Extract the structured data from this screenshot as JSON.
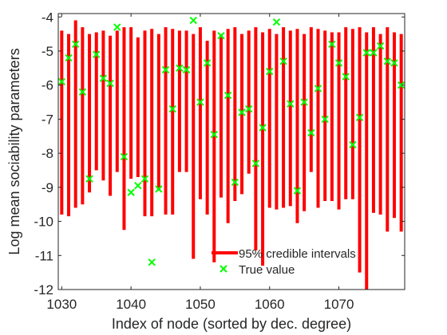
{
  "chart_data": {
    "type": "errorbar-scatter",
    "xlabel": "Index of node (sorted by dec. degree)",
    "ylabel": "Log mean sociability parameters",
    "xlim": [
      1029.5,
      1079.5
    ],
    "ylim": [
      -12,
      -3.9
    ],
    "xticks": [
      1030,
      1040,
      1050,
      1060,
      1070
    ],
    "yticks": [
      -4,
      -5,
      -6,
      -7,
      -8,
      -9,
      -10,
      -11,
      -12
    ],
    "legend": {
      "position": "bottom-right",
      "entries": [
        "95% credible intervals",
        "True value"
      ]
    },
    "colors": {
      "interval": "#ff0000",
      "true_value": "#00ff00",
      "axis": "#262626"
    },
    "series": [
      {
        "name": "95% credible intervals",
        "points": [
          {
            "x": 1030,
            "low": -9.8,
            "high": -4.4
          },
          {
            "x": 1031,
            "low": -9.85,
            "high": -4.5
          },
          {
            "x": 1032,
            "low": -9.6,
            "high": -4.1
          },
          {
            "x": 1033,
            "low": -9.5,
            "high": -4.3
          },
          {
            "x": 1034,
            "low": -9.15,
            "high": -4.5
          },
          {
            "x": 1035,
            "low": -8.5,
            "high": -4.45
          },
          {
            "x": 1036,
            "low": -8.8,
            "high": -4.4
          },
          {
            "x": 1037,
            "low": -9.25,
            "high": -4.55
          },
          {
            "x": 1038,
            "low": -8.55,
            "high": -4.4
          },
          {
            "x": 1039,
            "low": -10.25,
            "high": -4.3
          },
          {
            "x": 1040,
            "low": -8.75,
            "high": -4.3
          },
          {
            "x": 1041,
            "low": -8.7,
            "high": -4.6
          },
          {
            "x": 1042,
            "low": -9.85,
            "high": -4.4
          },
          {
            "x": 1043,
            "low": -9.85,
            "high": -4.35
          },
          {
            "x": 1044,
            "low": -9.1,
            "high": -4.5
          },
          {
            "x": 1045,
            "low": -9.8,
            "high": -4.3
          },
          {
            "x": 1046,
            "low": -9.8,
            "high": -4.35
          },
          {
            "x": 1047,
            "low": -8.55,
            "high": -4.4
          },
          {
            "x": 1048,
            "low": -8.55,
            "high": -4.4
          },
          {
            "x": 1049,
            "low": -11.1,
            "high": -4.5
          },
          {
            "x": 1050,
            "low": -9.35,
            "high": -4.3
          },
          {
            "x": 1051,
            "low": -9.8,
            "high": -4.7
          },
          {
            "x": 1052,
            "low": -11.2,
            "high": -4.4
          },
          {
            "x": 1053,
            "low": -9.3,
            "high": -4.5
          },
          {
            "x": 1054,
            "low": -10.05,
            "high": -4.35
          },
          {
            "x": 1055,
            "low": -9.4,
            "high": -4.3
          },
          {
            "x": 1056,
            "low": -9.2,
            "high": -4.5
          },
          {
            "x": 1057,
            "low": -8.6,
            "high": -4.4
          },
          {
            "x": 1058,
            "low": -10.85,
            "high": -4.3
          },
          {
            "x": 1059,
            "low": -11.3,
            "high": -4.45
          },
          {
            "x": 1060,
            "low": -9.6,
            "high": -4.35
          },
          {
            "x": 1061,
            "low": -9.65,
            "high": -4.5
          },
          {
            "x": 1062,
            "low": -9.6,
            "high": -4.3
          },
          {
            "x": 1063,
            "low": -9.55,
            "high": -4.4
          },
          {
            "x": 1064,
            "low": -10.05,
            "high": -4.35
          },
          {
            "x": 1065,
            "low": -9.7,
            "high": -4.5
          },
          {
            "x": 1066,
            "low": -8.55,
            "high": -4.3
          },
          {
            "x": 1067,
            "low": -9.6,
            "high": -4.35
          },
          {
            "x": 1068,
            "low": -9.4,
            "high": -4.4
          },
          {
            "x": 1069,
            "low": -9.4,
            "high": -4.45
          },
          {
            "x": 1070,
            "low": -9.65,
            "high": -4.45
          },
          {
            "x": 1071,
            "low": -9.35,
            "high": -4.3
          },
          {
            "x": 1072,
            "low": -9.35,
            "high": -4.35
          },
          {
            "x": 1073,
            "low": -11.5,
            "high": -4.3
          },
          {
            "x": 1074,
            "low": -12.0,
            "high": -4.45
          },
          {
            "x": 1075,
            "low": -9.75,
            "high": -4.3
          },
          {
            "x": 1076,
            "low": -9.8,
            "high": -4.5
          },
          {
            "x": 1077,
            "low": -10.3,
            "high": -4.3
          },
          {
            "x": 1078,
            "low": -9.9,
            "high": -4.45
          },
          {
            "x": 1079,
            "low": -10.3,
            "high": -4.5
          }
        ]
      },
      {
        "name": "True value",
        "points": [
          {
            "x": 1030,
            "y": -5.9
          },
          {
            "x": 1031,
            "y": -5.2
          },
          {
            "x": 1032,
            "y": -4.8
          },
          {
            "x": 1033,
            "y": -6.2
          },
          {
            "x": 1034,
            "y": -8.75
          },
          {
            "x": 1035,
            "y": -5.1
          },
          {
            "x": 1036,
            "y": -5.8
          },
          {
            "x": 1037,
            "y": -5.95
          },
          {
            "x": 1038,
            "y": -4.3
          },
          {
            "x": 1039,
            "y": -8.1
          },
          {
            "x": 1040,
            "y": -9.15
          },
          {
            "x": 1041,
            "y": -8.95
          },
          {
            "x": 1042,
            "y": -8.75
          },
          {
            "x": 1043,
            "y": -11.2
          },
          {
            "x": 1044,
            "y": -9.05
          },
          {
            "x": 1045,
            "y": -5.55
          },
          {
            "x": 1046,
            "y": -6.7
          },
          {
            "x": 1047,
            "y": -5.5
          },
          {
            "x": 1048,
            "y": -5.55
          },
          {
            "x": 1049,
            "y": -4.1
          },
          {
            "x": 1050,
            "y": -6.5
          },
          {
            "x": 1051,
            "y": -5.35
          },
          {
            "x": 1052,
            "y": -7.45
          },
          {
            "x": 1053,
            "y": -4.55
          },
          {
            "x": 1054,
            "y": -6.3
          },
          {
            "x": 1055,
            "y": -8.85
          },
          {
            "x": 1056,
            "y": -6.8
          },
          {
            "x": 1057,
            "y": -6.7
          },
          {
            "x": 1058,
            "y": -8.3
          },
          {
            "x": 1059,
            "y": -7.25
          },
          {
            "x": 1060,
            "y": -5.6
          },
          {
            "x": 1061,
            "y": -4.15
          },
          {
            "x": 1062,
            "y": -5.3
          },
          {
            "x": 1063,
            "y": -6.55
          },
          {
            "x": 1064,
            "y": -9.1
          },
          {
            "x": 1065,
            "y": -6.5
          },
          {
            "x": 1066,
            "y": -7.4
          },
          {
            "x": 1067,
            "y": -6.1
          },
          {
            "x": 1068,
            "y": -7.0
          },
          {
            "x": 1069,
            "y": -4.8
          },
          {
            "x": 1070,
            "y": -5.35
          },
          {
            "x": 1071,
            "y": -5.75
          },
          {
            "x": 1072,
            "y": -7.75
          },
          {
            "x": 1073,
            "y": -6.95
          },
          {
            "x": 1074,
            "y": -5.05
          },
          {
            "x": 1075,
            "y": -5.05
          },
          {
            "x": 1076,
            "y": -4.85
          },
          {
            "x": 1077,
            "y": -5.3
          },
          {
            "x": 1078,
            "y": -5.35
          },
          {
            "x": 1079,
            "y": -6.0
          }
        ]
      }
    ]
  }
}
